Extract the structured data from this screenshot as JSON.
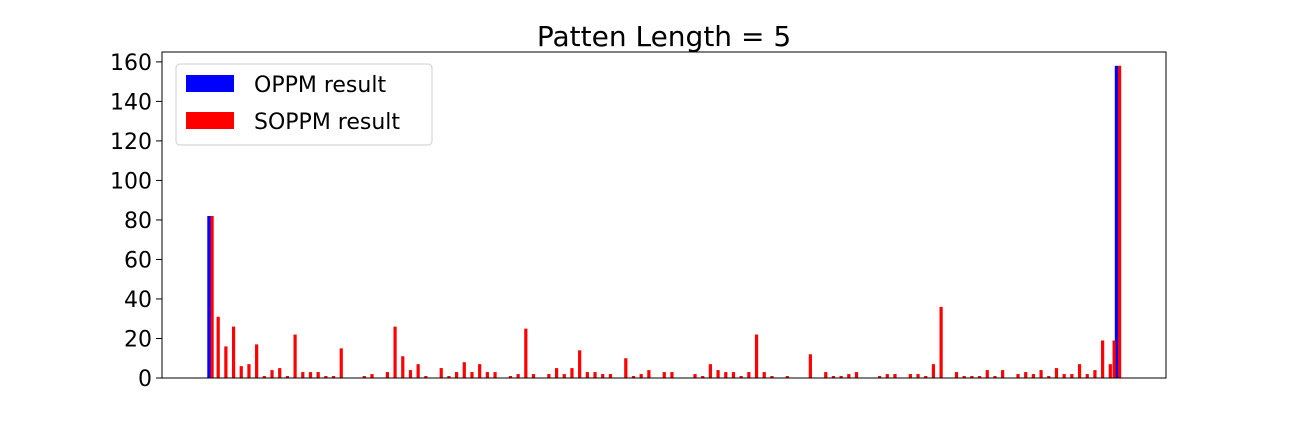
{
  "chart_data": {
    "type": "bar",
    "title": "Patten Length = 5",
    "xlabel": "",
    "ylabel": "",
    "ylim": [
      0,
      165
    ],
    "yticks": [
      0,
      20,
      40,
      60,
      80,
      100,
      120,
      140,
      160
    ],
    "grid": false,
    "legend_position": "top-left",
    "series": [
      {
        "name": "OPPM result",
        "color": "#0000ff",
        "points": [
          {
            "x": 0,
            "y": 82
          },
          {
            "x": 118,
            "y": 158
          }
        ]
      },
      {
        "name": "SOPPM result",
        "color": "#ff0000",
        "points": [
          {
            "x": 0,
            "y": 82
          },
          {
            "x": 1,
            "y": 31
          },
          {
            "x": 2,
            "y": 16
          },
          {
            "x": 3,
            "y": 26
          },
          {
            "x": 4,
            "y": 6
          },
          {
            "x": 5,
            "y": 7
          },
          {
            "x": 6,
            "y": 17
          },
          {
            "x": 7,
            "y": 1
          },
          {
            "x": 8,
            "y": 4
          },
          {
            "x": 9,
            "y": 5
          },
          {
            "x": 10,
            "y": 1
          },
          {
            "x": 11,
            "y": 22
          },
          {
            "x": 12,
            "y": 3
          },
          {
            "x": 13,
            "y": 3
          },
          {
            "x": 14,
            "y": 3
          },
          {
            "x": 15,
            "y": 1
          },
          {
            "x": 16,
            "y": 1
          },
          {
            "x": 17,
            "y": 15
          },
          {
            "x": 20,
            "y": 1
          },
          {
            "x": 21,
            "y": 2
          },
          {
            "x": 23,
            "y": 3
          },
          {
            "x": 24,
            "y": 26
          },
          {
            "x": 25,
            "y": 11
          },
          {
            "x": 26,
            "y": 4
          },
          {
            "x": 27,
            "y": 7
          },
          {
            "x": 28,
            "y": 1
          },
          {
            "x": 30,
            "y": 5
          },
          {
            "x": 31,
            "y": 1
          },
          {
            "x": 32,
            "y": 3
          },
          {
            "x": 33,
            "y": 8
          },
          {
            "x": 34,
            "y": 3
          },
          {
            "x": 35,
            "y": 7
          },
          {
            "x": 36,
            "y": 3
          },
          {
            "x": 37,
            "y": 3
          },
          {
            "x": 39,
            "y": 1
          },
          {
            "x": 40,
            "y": 2
          },
          {
            "x": 41,
            "y": 25
          },
          {
            "x": 42,
            "y": 2
          },
          {
            "x": 44,
            "y": 2
          },
          {
            "x": 45,
            "y": 5
          },
          {
            "x": 46,
            "y": 2
          },
          {
            "x": 47,
            "y": 5
          },
          {
            "x": 48,
            "y": 14
          },
          {
            "x": 49,
            "y": 3
          },
          {
            "x": 50,
            "y": 3
          },
          {
            "x": 51,
            "y": 2
          },
          {
            "x": 52,
            "y": 2
          },
          {
            "x": 54,
            "y": 10
          },
          {
            "x": 55,
            "y": 1
          },
          {
            "x": 56,
            "y": 2
          },
          {
            "x": 57,
            "y": 4
          },
          {
            "x": 59,
            "y": 3
          },
          {
            "x": 60,
            "y": 3
          },
          {
            "x": 63,
            "y": 2
          },
          {
            "x": 64,
            "y": 1
          },
          {
            "x": 65,
            "y": 7
          },
          {
            "x": 66,
            "y": 4
          },
          {
            "x": 67,
            "y": 3
          },
          {
            "x": 68,
            "y": 3
          },
          {
            "x": 69,
            "y": 1
          },
          {
            "x": 70,
            "y": 3
          },
          {
            "x": 71,
            "y": 22
          },
          {
            "x": 72,
            "y": 3
          },
          {
            "x": 73,
            "y": 1
          },
          {
            "x": 75,
            "y": 1
          },
          {
            "x": 78,
            "y": 12
          },
          {
            "x": 80,
            "y": 3
          },
          {
            "x": 81,
            "y": 1
          },
          {
            "x": 82,
            "y": 1
          },
          {
            "x": 83,
            "y": 2
          },
          {
            "x": 84,
            "y": 3
          },
          {
            "x": 87,
            "y": 1
          },
          {
            "x": 88,
            "y": 2
          },
          {
            "x": 89,
            "y": 2
          },
          {
            "x": 91,
            "y": 2
          },
          {
            "x": 92,
            "y": 2
          },
          {
            "x": 93,
            "y": 1
          },
          {
            "x": 94,
            "y": 7
          },
          {
            "x": 95,
            "y": 36
          },
          {
            "x": 97,
            "y": 3
          },
          {
            "x": 98,
            "y": 1
          },
          {
            "x": 99,
            "y": 1
          },
          {
            "x": 100,
            "y": 1
          },
          {
            "x": 101,
            "y": 4
          },
          {
            "x": 102,
            "y": 1
          },
          {
            "x": 103,
            "y": 4
          },
          {
            "x": 105,
            "y": 2
          },
          {
            "x": 106,
            "y": 3
          },
          {
            "x": 107,
            "y": 2
          },
          {
            "x": 108,
            "y": 4
          },
          {
            "x": 109,
            "y": 1
          },
          {
            "x": 110,
            "y": 5
          },
          {
            "x": 111,
            "y": 2
          },
          {
            "x": 112,
            "y": 2
          },
          {
            "x": 113,
            "y": 7
          },
          {
            "x": 114,
            "y": 2
          },
          {
            "x": 115,
            "y": 4
          },
          {
            "x": 116,
            "y": 19
          },
          {
            "x": 117,
            "y": 7
          },
          {
            "x": 117.5,
            "y": 19
          },
          {
            "x": 118,
            "y": 158
          }
        ]
      }
    ]
  }
}
